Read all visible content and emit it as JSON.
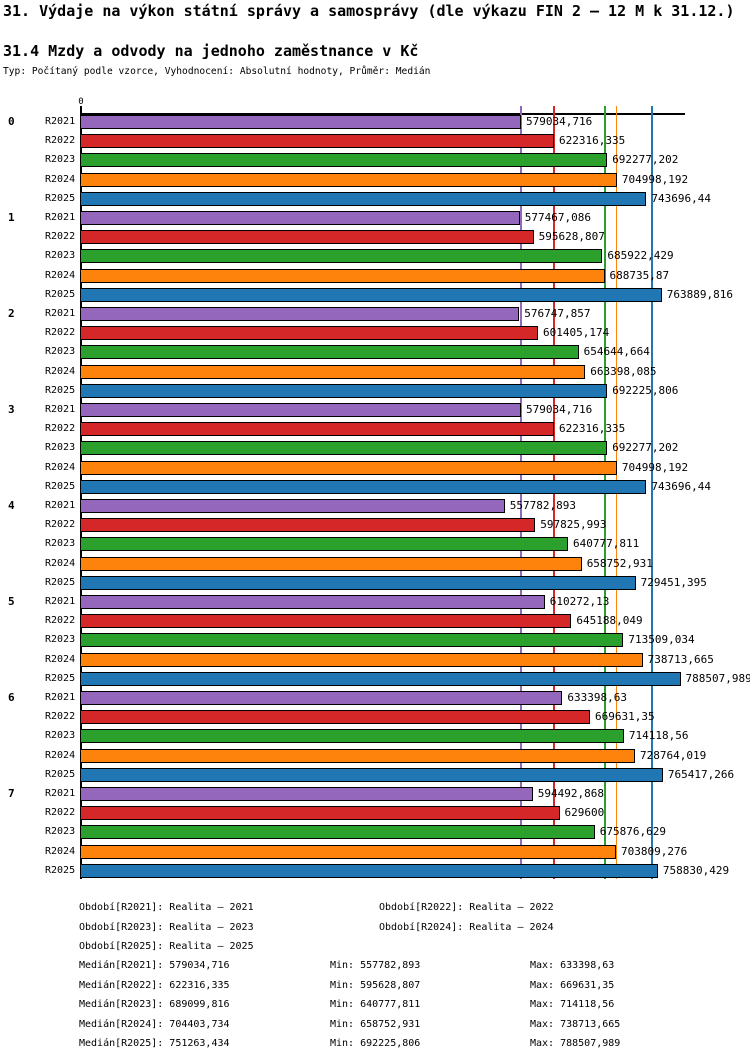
{
  "title": "31. Výdaje na výkon státní správy a samosprávy (dle výkazu FIN 2 – 12 M k 31.12.)",
  "subtitle": "31.4 Mzdy a odvody na jednoho zaměstnance v Kč",
  "type_line": "Typ: Počítaný podle vzorce, Vyhodnocení: Absolutní hodnoty, Průměr: Medián",
  "chart_data": {
    "type": "bar",
    "orientation": "horizontal",
    "value_axis": {
      "zero_label": "0",
      "unit": "Kč",
      "xlim": [
        0,
        815000
      ]
    },
    "grid": "off",
    "categories": [
      "0",
      "1",
      "2",
      "3",
      "4",
      "5",
      "6",
      "7"
    ],
    "series": [
      {
        "name": "R2021",
        "color": "#9467bd",
        "median": 579034.716
      },
      {
        "name": "R2022",
        "color": "#d62728",
        "median": 622316.335
      },
      {
        "name": "R2023",
        "color": "#2ca02c",
        "median": 689099.816
      },
      {
        "name": "R2024",
        "color": "#fd830d",
        "median": 704403.734
      },
      {
        "name": "R2025",
        "color": "#2077b4",
        "median": 751263.434
      }
    ],
    "groups": [
      {
        "label": "0",
        "values": [
          "579034,716",
          "622316,335",
          "692277,202",
          "704998,192",
          "743696,44"
        ]
      },
      {
        "label": "1",
        "values": [
          "577467,086",
          "595628,807",
          "685922,429",
          "688735,87",
          "763889,816"
        ]
      },
      {
        "label": "2",
        "values": [
          "576747,857",
          "601405,174",
          "654644,664",
          "663398,085",
          "692225,806"
        ]
      },
      {
        "label": "3",
        "values": [
          "579034,716",
          "622316,335",
          "692277,202",
          "704998,192",
          "743696,44"
        ]
      },
      {
        "label": "4",
        "values": [
          "557782,893",
          "597825,993",
          "640777,811",
          "658752,931",
          "729451,395"
        ]
      },
      {
        "label": "5",
        "values": [
          "610272,13",
          "645188,049",
          "713509,034",
          "738713,665",
          "788507,989"
        ]
      },
      {
        "label": "6",
        "values": [
          "633398,63",
          "669631,35",
          "714118,56",
          "728764,019",
          "765417,266"
        ]
      },
      {
        "label": "7",
        "values": [
          "594492,868",
          "629600",
          "675876,629",
          "703809,276",
          "758830,429"
        ]
      }
    ]
  },
  "legend": {
    "periods": [
      "Období[R2021]: Realita – 2021",
      "Období[R2022]: Realita – 2022",
      "Období[R2023]: Realita – 2023",
      "Období[R2024]: Realita – 2024",
      "Období[R2025]: Realita – 2025"
    ],
    "stats": [
      {
        "median": "Medián[R2021]: 579034,716",
        "min": "Min: 557782,893",
        "max": "Max: 633398,63"
      },
      {
        "median": "Medián[R2022]: 622316,335",
        "min": "Min: 595628,807",
        "max": "Max: 669631,35"
      },
      {
        "median": "Medián[R2023]: 689099,816",
        "min": "Min: 640777,811",
        "max": "Max: 714118,56"
      },
      {
        "median": "Medián[R2024]: 704403,734",
        "min": "Min: 658752,931",
        "max": "Max: 738713,665"
      },
      {
        "median": "Medián[R2025]: 751263,434",
        "min": "Min: 692225,806",
        "max": "Max: 788507,989"
      }
    ]
  }
}
